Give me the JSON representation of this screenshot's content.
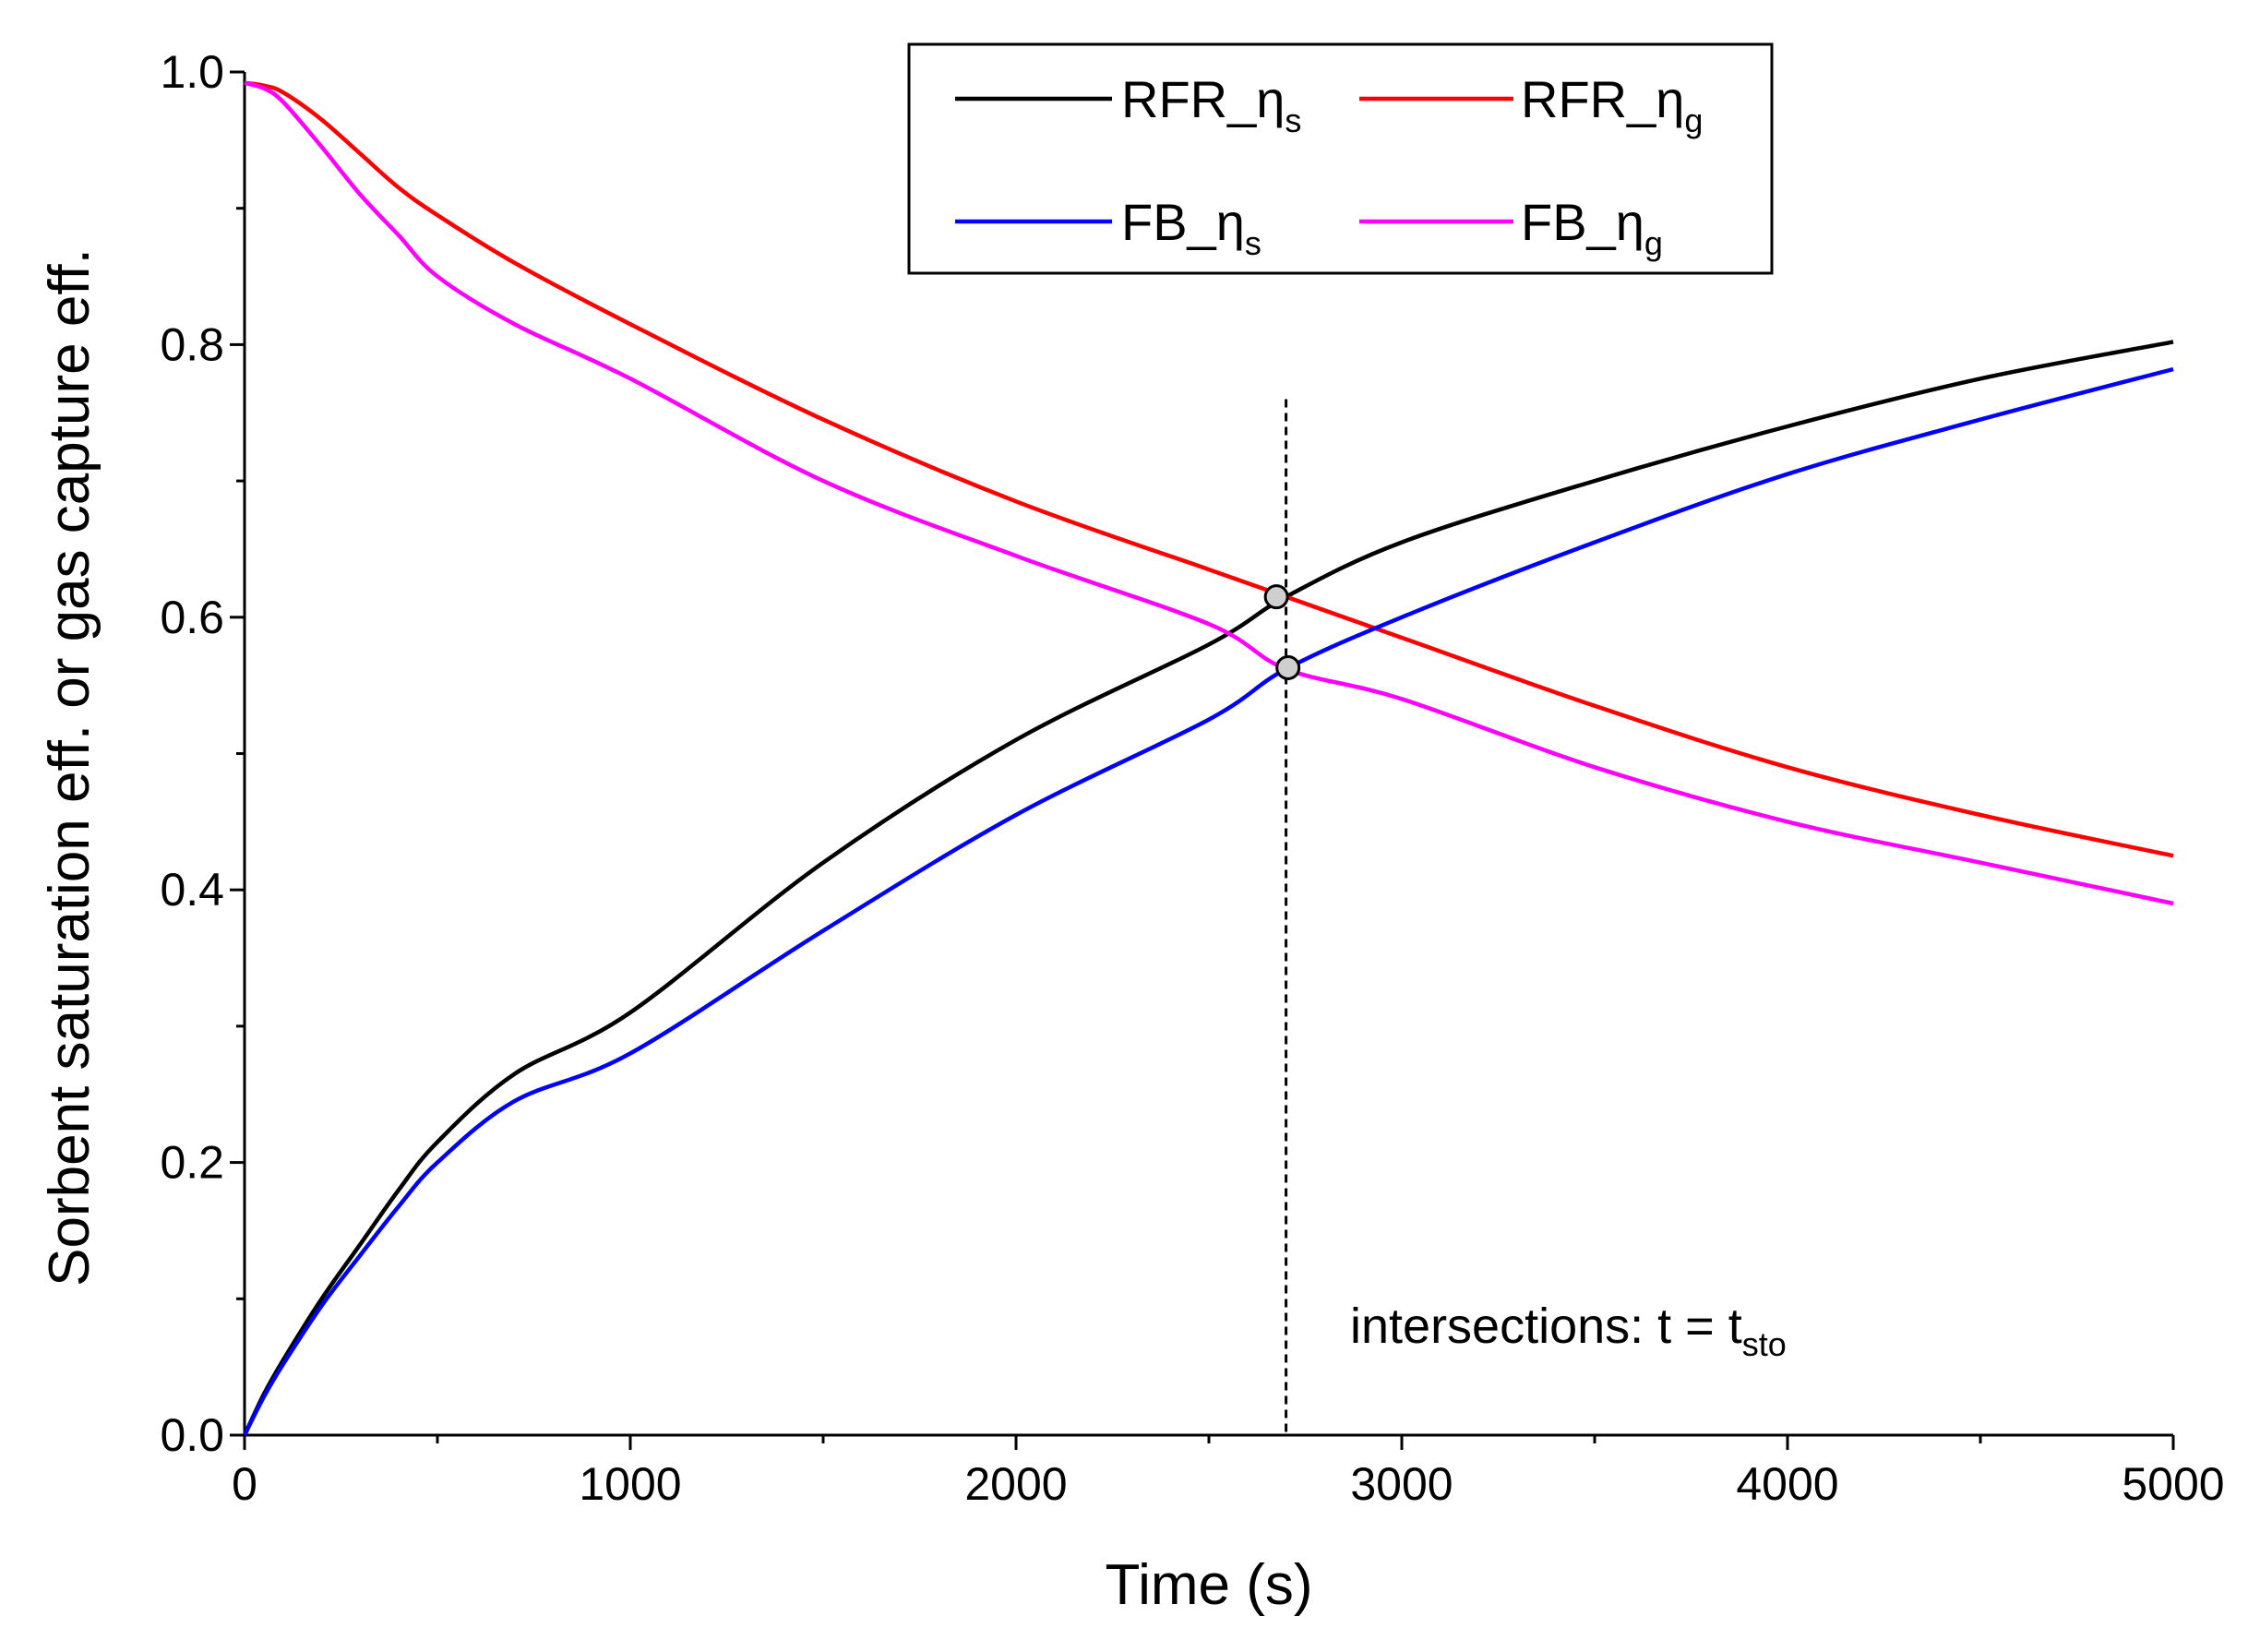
{
  "chart_data": {
    "type": "line",
    "title": "",
    "xlabel": "Time (s)",
    "ylabel": "Sorbent saturation eff. or gas capture eff.",
    "xlim": [
      0,
      5000
    ],
    "ylim": [
      0.0,
      1.0
    ],
    "x_ticks": [
      0,
      1000,
      2000,
      3000,
      4000,
      5000
    ],
    "x_tick_labels": [
      "0",
      "1000",
      "2000",
      "3000",
      "4000",
      "5000"
    ],
    "y_ticks": [
      0.0,
      0.2,
      0.4,
      0.6,
      0.8,
      1.0
    ],
    "y_tick_labels": [
      "0.0",
      "0.2",
      "0.4",
      "0.6",
      "0.8",
      "1.0"
    ],
    "grid": false,
    "legend_position": "top-right",
    "x": [
      0,
      50,
      100,
      200,
      300,
      400,
      500,
      700,
      1000,
      1500,
      2000,
      2500,
      2700,
      3000,
      3500,
      4000,
      4500,
      5000
    ],
    "series": [
      {
        "name": "RFR_ηs",
        "label_main": "RFR_η",
        "label_sub": "s",
        "color": "#000000",
        "values": [
          0.0,
          0.03,
          0.055,
          0.1,
          0.14,
          0.18,
          0.215,
          0.265,
          0.31,
          0.42,
          0.51,
          0.58,
          0.615,
          0.655,
          0.7,
          0.74,
          0.775,
          0.802
        ]
      },
      {
        "name": "RFR_ηg",
        "label_main": "RFR_η",
        "label_sub": "g",
        "color": "#ff0000",
        "values": [
          0.992,
          0.99,
          0.985,
          0.965,
          0.94,
          0.915,
          0.895,
          0.86,
          0.815,
          0.745,
          0.685,
          0.635,
          0.615,
          0.585,
          0.535,
          0.49,
          0.455,
          0.425
        ]
      },
      {
        "name": "FB_ηs",
        "label_main": "FB_η",
        "label_sub": "s",
        "color": "#0000ff",
        "values": [
          0.0,
          0.028,
          0.052,
          0.095,
          0.132,
          0.168,
          0.2,
          0.245,
          0.28,
          0.37,
          0.455,
          0.525,
          0.562,
          0.6,
          0.655,
          0.705,
          0.745,
          0.782
        ]
      },
      {
        "name": "FB_ηg",
        "label_main": "FB_η",
        "label_sub": "g",
        "color": "#ff00ff",
        "values": [
          0.992,
          0.988,
          0.978,
          0.945,
          0.91,
          0.88,
          0.85,
          0.815,
          0.775,
          0.7,
          0.645,
          0.595,
          0.562,
          0.54,
          0.49,
          0.45,
          0.42,
          0.39
        ]
      }
    ],
    "annotations": {
      "vline_x": 2700,
      "vline_y_top": 0.76,
      "markers": [
        {
          "x": 2675,
          "y": 0.615
        },
        {
          "x": 2705,
          "y": 0.563
        }
      ],
      "text_main": "intersections: t = t",
      "text_sub": "sto"
    }
  }
}
